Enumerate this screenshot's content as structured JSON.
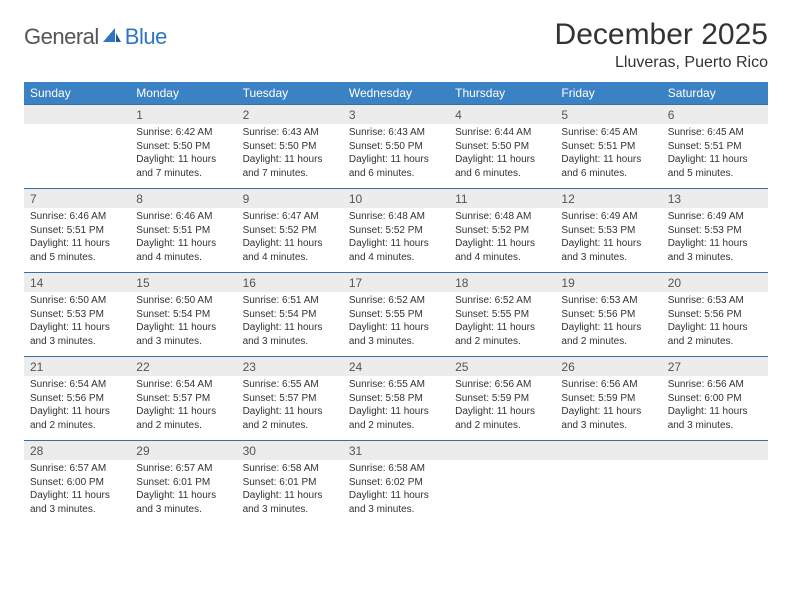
{
  "brand": {
    "part1": "General",
    "part2": "Blue"
  },
  "title": "December 2025",
  "location": "Lluveras, Puerto Rico",
  "colors": {
    "header_bg": "#3b82c4",
    "header_text": "#ffffff",
    "date_bg": "#ececec",
    "border": "#3b6fa0",
    "text": "#333333",
    "logo_gray": "#555555",
    "logo_blue": "#2e75c5"
  },
  "day_names": [
    "Sunday",
    "Monday",
    "Tuesday",
    "Wednesday",
    "Thursday",
    "Friday",
    "Saturday"
  ],
  "weeks": [
    [
      {
        "num": "",
        "sunrise": "",
        "sunset": "",
        "daylight": ""
      },
      {
        "num": "1",
        "sunrise": "Sunrise: 6:42 AM",
        "sunset": "Sunset: 5:50 PM",
        "daylight": "Daylight: 11 hours and 7 minutes."
      },
      {
        "num": "2",
        "sunrise": "Sunrise: 6:43 AM",
        "sunset": "Sunset: 5:50 PM",
        "daylight": "Daylight: 11 hours and 7 minutes."
      },
      {
        "num": "3",
        "sunrise": "Sunrise: 6:43 AM",
        "sunset": "Sunset: 5:50 PM",
        "daylight": "Daylight: 11 hours and 6 minutes."
      },
      {
        "num": "4",
        "sunrise": "Sunrise: 6:44 AM",
        "sunset": "Sunset: 5:50 PM",
        "daylight": "Daylight: 11 hours and 6 minutes."
      },
      {
        "num": "5",
        "sunrise": "Sunrise: 6:45 AM",
        "sunset": "Sunset: 5:51 PM",
        "daylight": "Daylight: 11 hours and 6 minutes."
      },
      {
        "num": "6",
        "sunrise": "Sunrise: 6:45 AM",
        "sunset": "Sunset: 5:51 PM",
        "daylight": "Daylight: 11 hours and 5 minutes."
      }
    ],
    [
      {
        "num": "7",
        "sunrise": "Sunrise: 6:46 AM",
        "sunset": "Sunset: 5:51 PM",
        "daylight": "Daylight: 11 hours and 5 minutes."
      },
      {
        "num": "8",
        "sunrise": "Sunrise: 6:46 AM",
        "sunset": "Sunset: 5:51 PM",
        "daylight": "Daylight: 11 hours and 4 minutes."
      },
      {
        "num": "9",
        "sunrise": "Sunrise: 6:47 AM",
        "sunset": "Sunset: 5:52 PM",
        "daylight": "Daylight: 11 hours and 4 minutes."
      },
      {
        "num": "10",
        "sunrise": "Sunrise: 6:48 AM",
        "sunset": "Sunset: 5:52 PM",
        "daylight": "Daylight: 11 hours and 4 minutes."
      },
      {
        "num": "11",
        "sunrise": "Sunrise: 6:48 AM",
        "sunset": "Sunset: 5:52 PM",
        "daylight": "Daylight: 11 hours and 4 minutes."
      },
      {
        "num": "12",
        "sunrise": "Sunrise: 6:49 AM",
        "sunset": "Sunset: 5:53 PM",
        "daylight": "Daylight: 11 hours and 3 minutes."
      },
      {
        "num": "13",
        "sunrise": "Sunrise: 6:49 AM",
        "sunset": "Sunset: 5:53 PM",
        "daylight": "Daylight: 11 hours and 3 minutes."
      }
    ],
    [
      {
        "num": "14",
        "sunrise": "Sunrise: 6:50 AM",
        "sunset": "Sunset: 5:53 PM",
        "daylight": "Daylight: 11 hours and 3 minutes."
      },
      {
        "num": "15",
        "sunrise": "Sunrise: 6:50 AM",
        "sunset": "Sunset: 5:54 PM",
        "daylight": "Daylight: 11 hours and 3 minutes."
      },
      {
        "num": "16",
        "sunrise": "Sunrise: 6:51 AM",
        "sunset": "Sunset: 5:54 PM",
        "daylight": "Daylight: 11 hours and 3 minutes."
      },
      {
        "num": "17",
        "sunrise": "Sunrise: 6:52 AM",
        "sunset": "Sunset: 5:55 PM",
        "daylight": "Daylight: 11 hours and 3 minutes."
      },
      {
        "num": "18",
        "sunrise": "Sunrise: 6:52 AM",
        "sunset": "Sunset: 5:55 PM",
        "daylight": "Daylight: 11 hours and 2 minutes."
      },
      {
        "num": "19",
        "sunrise": "Sunrise: 6:53 AM",
        "sunset": "Sunset: 5:56 PM",
        "daylight": "Daylight: 11 hours and 2 minutes."
      },
      {
        "num": "20",
        "sunrise": "Sunrise: 6:53 AM",
        "sunset": "Sunset: 5:56 PM",
        "daylight": "Daylight: 11 hours and 2 minutes."
      }
    ],
    [
      {
        "num": "21",
        "sunrise": "Sunrise: 6:54 AM",
        "sunset": "Sunset: 5:56 PM",
        "daylight": "Daylight: 11 hours and 2 minutes."
      },
      {
        "num": "22",
        "sunrise": "Sunrise: 6:54 AM",
        "sunset": "Sunset: 5:57 PM",
        "daylight": "Daylight: 11 hours and 2 minutes."
      },
      {
        "num": "23",
        "sunrise": "Sunrise: 6:55 AM",
        "sunset": "Sunset: 5:57 PM",
        "daylight": "Daylight: 11 hours and 2 minutes."
      },
      {
        "num": "24",
        "sunrise": "Sunrise: 6:55 AM",
        "sunset": "Sunset: 5:58 PM",
        "daylight": "Daylight: 11 hours and 2 minutes."
      },
      {
        "num": "25",
        "sunrise": "Sunrise: 6:56 AM",
        "sunset": "Sunset: 5:59 PM",
        "daylight": "Daylight: 11 hours and 2 minutes."
      },
      {
        "num": "26",
        "sunrise": "Sunrise: 6:56 AM",
        "sunset": "Sunset: 5:59 PM",
        "daylight": "Daylight: 11 hours and 3 minutes."
      },
      {
        "num": "27",
        "sunrise": "Sunrise: 6:56 AM",
        "sunset": "Sunset: 6:00 PM",
        "daylight": "Daylight: 11 hours and 3 minutes."
      }
    ],
    [
      {
        "num": "28",
        "sunrise": "Sunrise: 6:57 AM",
        "sunset": "Sunset: 6:00 PM",
        "daylight": "Daylight: 11 hours and 3 minutes."
      },
      {
        "num": "29",
        "sunrise": "Sunrise: 6:57 AM",
        "sunset": "Sunset: 6:01 PM",
        "daylight": "Daylight: 11 hours and 3 minutes."
      },
      {
        "num": "30",
        "sunrise": "Sunrise: 6:58 AM",
        "sunset": "Sunset: 6:01 PM",
        "daylight": "Daylight: 11 hours and 3 minutes."
      },
      {
        "num": "31",
        "sunrise": "Sunrise: 6:58 AM",
        "sunset": "Sunset: 6:02 PM",
        "daylight": "Daylight: 11 hours and 3 minutes."
      },
      {
        "num": "",
        "sunrise": "",
        "sunset": "",
        "daylight": ""
      },
      {
        "num": "",
        "sunrise": "",
        "sunset": "",
        "daylight": ""
      },
      {
        "num": "",
        "sunrise": "",
        "sunset": "",
        "daylight": ""
      }
    ]
  ]
}
